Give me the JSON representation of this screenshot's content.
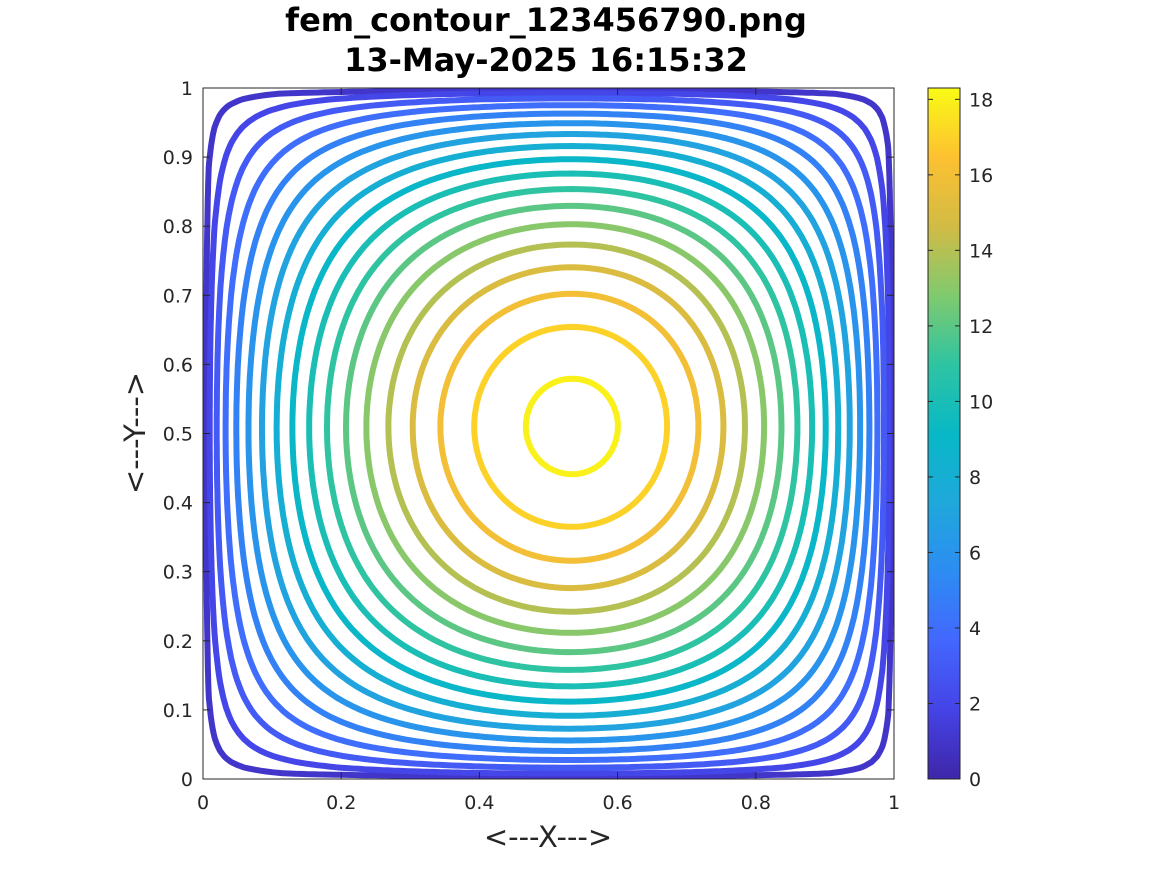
{
  "chart_data": {
    "type": "contour",
    "title_line1": "fem_contour_123456790.png",
    "title_line2": "13-May-2025 16:15:32",
    "xlabel": "<---X--->",
    "ylabel": "<---Y--->",
    "xlim": [
      0,
      1
    ],
    "ylim": [
      0,
      1
    ],
    "xticks": [
      "0",
      "0.2",
      "0.4",
      "0.6",
      "0.8",
      "1"
    ],
    "yticks": [
      "0",
      "0.1",
      "0.2",
      "0.3",
      "0.4",
      "0.5",
      "0.6",
      "0.7",
      "0.8",
      "0.9",
      "1"
    ],
    "colorbar": {
      "colormap": "parula",
      "range": [
        0,
        18.3
      ],
      "ticks": [
        "0",
        "2",
        "4",
        "6",
        "8",
        "10",
        "12",
        "14",
        "16",
        "18"
      ]
    },
    "peak": {
      "x": 0.63,
      "y": 0.55,
      "value": 18.3
    },
    "contour_levels": [
      1,
      2,
      3,
      4,
      5,
      6,
      7,
      8,
      9,
      10,
      11,
      12,
      13,
      14,
      15,
      16,
      17,
      18
    ]
  }
}
